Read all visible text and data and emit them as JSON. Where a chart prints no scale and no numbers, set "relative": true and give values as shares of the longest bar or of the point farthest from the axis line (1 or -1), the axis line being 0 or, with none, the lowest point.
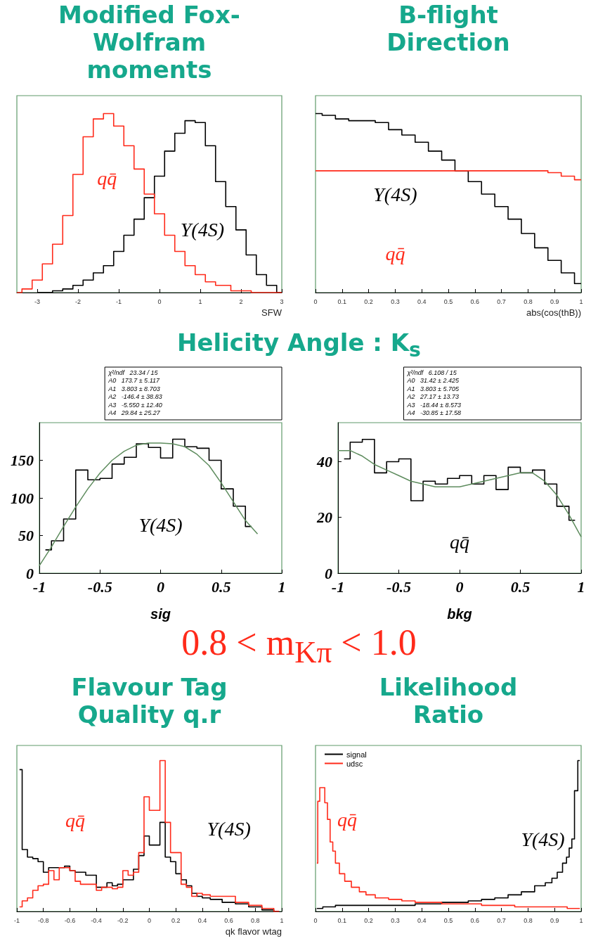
{
  "chart_data": [
    {
      "type": "step",
      "title": "Modified Fox-Wolfram moments",
      "xlabel": "SFW",
      "relative": true,
      "xlim": [
        -3.5,
        3
      ],
      "xticks": [
        -3,
        -2,
        -1,
        0,
        1,
        2,
        3
      ],
      "series": [
        {
          "name": "Υ(4S)",
          "color": "#000000",
          "x": [
            -3,
            -2.75,
            -2.5,
            -2.25,
            -2,
            -1.75,
            -1.5,
            -1.25,
            -1,
            -0.75,
            -0.5,
            -0.25,
            0,
            0.25,
            0.5,
            0.75,
            1,
            1.25,
            1.5,
            1.75,
            2,
            2.25,
            2.5,
            2.75,
            3
          ],
          "values": [
            0,
            0,
            0.01,
            0.02,
            0.04,
            0.07,
            0.11,
            0.15,
            0.23,
            0.32,
            0.41,
            0.53,
            0.65,
            0.79,
            0.89,
            0.96,
            0.95,
            0.82,
            0.62,
            0.48,
            0.35,
            0.21,
            0.1,
            0.04,
            0
          ]
        },
        {
          "name": "qq̄",
          "color": "#ff2a1a",
          "x": [
            -3.5,
            -3.25,
            -3,
            -2.75,
            -2.5,
            -2.25,
            -2,
            -1.75,
            -1.5,
            -1.25,
            -1,
            -0.75,
            -0.5,
            -0.25,
            0,
            0.25,
            0.5,
            0.75,
            1,
            1.25,
            1.5,
            2,
            2.5,
            3
          ],
          "values": [
            0,
            0.02,
            0.07,
            0.16,
            0.27,
            0.43,
            0.66,
            0.87,
            0.97,
            1,
            0.93,
            0.82,
            0.69,
            0.55,
            0.44,
            0.32,
            0.23,
            0.15,
            0.1,
            0.06,
            0.04,
            0.01,
            0,
            0
          ]
        }
      ]
    },
    {
      "type": "step",
      "title": "B-flight Direction",
      "xlabel": "abs(cos(thB))",
      "relative": true,
      "xlim": [
        0,
        1
      ],
      "xticks": [
        0,
        0.1,
        0.2,
        0.3,
        0.4,
        0.5,
        0.6,
        0.7,
        0.8,
        0.9,
        1
      ],
      "x": [
        0,
        0.05,
        0.1,
        0.15,
        0.2,
        0.25,
        0.3,
        0.35,
        0.4,
        0.45,
        0.5,
        0.55,
        0.6,
        0.65,
        0.7,
        0.75,
        0.8,
        0.85,
        0.9,
        0.95,
        1
      ],
      "series": [
        {
          "name": "Υ(4S)",
          "color": "#000000",
          "values": [
            1,
            0.99,
            0.97,
            0.96,
            0.96,
            0.95,
            0.91,
            0.88,
            0.84,
            0.79,
            0.74,
            0.68,
            0.62,
            0.55,
            0.48,
            0.41,
            0.33,
            0.25,
            0.18,
            0.11,
            0.05
          ]
        },
        {
          "name": "qq̄",
          "color": "#ff2a1a",
          "values": [
            0.68,
            0.68,
            0.68,
            0.68,
            0.68,
            0.68,
            0.68,
            0.68,
            0.68,
            0.68,
            0.68,
            0.68,
            0.68,
            0.68,
            0.68,
            0.68,
            0.68,
            0.68,
            0.67,
            0.65,
            0.63
          ]
        }
      ]
    },
    {
      "type": "step",
      "title": "Helicity Angle : K$_{s}$",
      "subtitle": "0.8 < m$_{Kπ}$ < 1.0",
      "xlabel": "sig",
      "xlim": [
        -1,
        1
      ],
      "xticks": [
        -1,
        -0.5,
        0,
        0.5,
        1
      ],
      "ylim": [
        0,
        200
      ],
      "yticks": [
        0,
        50,
        100,
        150
      ],
      "annotations": [
        "χ²/ndf   23.34 / 15",
        "A0   173.7 ± 5.117",
        "A1   3.803 ± 8.703",
        "A2   -146.4 ± 38.83",
        "A3   -5.550 ± 12.40",
        "A4   29.84 ± 25.27"
      ],
      "series": [
        {
          "name": "Υ(4S)",
          "color": "#000000",
          "x": [
            -0.95,
            -0.85,
            -0.75,
            -0.65,
            -0.55,
            -0.45,
            -0.35,
            -0.25,
            -0.15,
            -0.05,
            0.05,
            0.15,
            0.25,
            0.35,
            0.45,
            0.55,
            0.65,
            0.75
          ],
          "values": [
            31,
            43,
            72,
            137,
            124,
            126,
            145,
            154,
            172,
            167,
            153,
            178,
            168,
            166,
            150,
            112,
            89,
            62
          ]
        },
        {
          "type": "line",
          "color": "#5e8c5e",
          "x": [
            -1,
            -0.9,
            -0.8,
            -0.7,
            -0.6,
            -0.5,
            -0.4,
            -0.3,
            -0.2,
            -0.1,
            0,
            0.1,
            0.2,
            0.3,
            0.4,
            0.5,
            0.6,
            0.7,
            0.8
          ],
          "values": [
            10,
            35,
            62,
            88,
            112,
            133,
            150,
            162,
            170,
            173,
            173,
            172,
            168,
            158,
            143,
            120,
            95,
            70,
            52
          ]
        }
      ]
    },
    {
      "type": "step",
      "xlabel": "bkg",
      "xlim": [
        -1,
        1
      ],
      "xticks": [
        -1,
        -0.5,
        0,
        0.5,
        1
      ],
      "ylim": [
        0,
        54
      ],
      "yticks": [
        0,
        20,
        40
      ],
      "annotations": [
        "χ²/ndf   6.108 / 15",
        "A0   31.42 ± 2.425",
        "A1   3.803 ± 5.705",
        "A2   27.17 ± 13.73",
        "A3   -18.44 ± 8.573",
        "A4   -30.85 ± 17.58"
      ],
      "series": [
        {
          "name": "qq̄",
          "color": "#000000",
          "x": [
            -0.95,
            -0.85,
            -0.75,
            -0.65,
            -0.55,
            -0.45,
            -0.35,
            -0.25,
            -0.15,
            -0.05,
            0.05,
            0.15,
            0.25,
            0.35,
            0.45,
            0.55,
            0.65,
            0.75,
            0.85,
            0.95
          ],
          "values": [
            41,
            47,
            48,
            36,
            40,
            41,
            26,
            33,
            32,
            34,
            35,
            32,
            35,
            30,
            38,
            36,
            37,
            32,
            24,
            19
          ]
        },
        {
          "type": "line",
          "color": "#5e8c5e",
          "x": [
            -1,
            -0.9,
            -0.8,
            -0.7,
            -0.6,
            -0.5,
            -0.4,
            -0.3,
            -0.2,
            -0.1,
            0,
            0.1,
            0.2,
            0.3,
            0.4,
            0.5,
            0.6,
            0.7,
            0.8,
            0.9,
            1
          ],
          "values": [
            44,
            44,
            42,
            39,
            37,
            35,
            33,
            32,
            31,
            31,
            31,
            32,
            33,
            34,
            35,
            36,
            36,
            33,
            28,
            21,
            13
          ]
        }
      ]
    },
    {
      "type": "step",
      "title": "Flavour Tag Quality q.r",
      "xlabel": "qk flavor wtag",
      "relative": true,
      "xlim": [
        -1,
        1
      ],
      "xticks": [
        -1,
        -0.8,
        -0.6,
        -0.4,
        -0.2,
        0,
        0.2,
        0.4,
        0.6,
        0.8,
        1
      ],
      "x": [
        -0.98,
        -0.94,
        -0.9,
        -0.86,
        -0.82,
        -0.78,
        -0.74,
        -0.7,
        -0.66,
        -0.62,
        -0.58,
        -0.54,
        -0.5,
        -0.46,
        -0.42,
        -0.38,
        -0.34,
        -0.3,
        -0.26,
        -0.22,
        -0.18,
        -0.14,
        -0.1,
        -0.06,
        -0.02,
        0.02,
        0.06,
        0.1,
        0.14,
        0.18,
        0.22,
        0.26,
        0.3,
        0.34,
        0.38,
        0.42,
        0.5,
        0.6,
        0.7,
        0.8,
        0.9,
        0.98
      ],
      "series": [
        {
          "name": "Υ(4S)",
          "color": "#000000",
          "values": [
            0.94,
            0.41,
            0.36,
            0.35,
            0.33,
            0.26,
            0.29,
            0.29,
            0.29,
            0.3,
            0.27,
            0.26,
            0.26,
            0.24,
            0.24,
            0.16,
            0.16,
            0.19,
            0.17,
            0.18,
            0.21,
            0.21,
            0.28,
            0.37,
            0.5,
            0.44,
            0.44,
            0.59,
            0.36,
            0.33,
            0.25,
            0.21,
            0.17,
            0.12,
            0.1,
            0.09,
            0.08,
            0.06,
            0.05,
            0.03,
            0.01,
            0
          ]
        },
        {
          "name": "qq̄",
          "color": "#ff2a1a",
          "values": [
            0.03,
            0.07,
            0.09,
            0.14,
            0.17,
            0.18,
            0.27,
            0.21,
            0.29,
            0.29,
            0.27,
            0.2,
            0.18,
            0.18,
            0.18,
            0.14,
            0.16,
            0.16,
            0.15,
            0.16,
            0.27,
            0.24,
            0.26,
            0.39,
            0.76,
            0.67,
            0.67,
            1,
            0.59,
            0.39,
            0.39,
            0.18,
            0.16,
            0.1,
            0.12,
            0.11,
            0.1,
            0.1,
            0.06,
            0.04,
            0.02,
            0
          ]
        }
      ]
    },
    {
      "type": "step",
      "title": "Likelihood Ratio",
      "relative": true,
      "xlim": [
        0,
        1
      ],
      "xticks": [
        0,
        0.1,
        0.2,
        0.3,
        0.4,
        0.5,
        0.6,
        0.7,
        0.8,
        0.9,
        1
      ],
      "legend": "top left",
      "annotations": [
        {
          "text": "Υ(4S)",
          "x": 0.97,
          "y": 0.48
        },
        {
          "text": "qq̄",
          "x": 0.05,
          "y": 0.61
        }
      ],
      "series": [
        {
          "name": "signal",
          "color": "#000000",
          "x": [
            0.005,
            0.05,
            0.1,
            0.15,
            0.2,
            0.25,
            0.3,
            0.35,
            0.4,
            0.45,
            0.5,
            0.55,
            0.6,
            0.65,
            0.7,
            0.75,
            0.8,
            0.85,
            0.88,
            0.9,
            0.92,
            0.94,
            0.95,
            0.96,
            0.97,
            0.98,
            0.995
          ],
          "values": [
            0.02,
            0.03,
            0.04,
            0.04,
            0.04,
            0.04,
            0.04,
            0.04,
            0.05,
            0.05,
            0.06,
            0.06,
            0.07,
            0.08,
            0.09,
            0.11,
            0.13,
            0.17,
            0.19,
            0.22,
            0.26,
            0.32,
            0.36,
            0.42,
            0.48,
            0.8,
            1
          ]
        },
        {
          "name": "udsc",
          "color": "#ff2a1a",
          "x": [
            0.005,
            0.012,
            0.02,
            0.03,
            0.04,
            0.05,
            0.06,
            0.07,
            0.08,
            0.1,
            0.12,
            0.15,
            0.18,
            0.2,
            0.25,
            0.3,
            0.35,
            0.4,
            0.45,
            0.5,
            0.55,
            0.6,
            0.65,
            0.7,
            0.8,
            0.9,
            0.995
          ],
          "values": [
            0.32,
            0.73,
            0.82,
            0.82,
            0.72,
            0.61,
            0.46,
            0.4,
            0.32,
            0.25,
            0.2,
            0.16,
            0.13,
            0.11,
            0.09,
            0.08,
            0.07,
            0.06,
            0.06,
            0.05,
            0.05,
            0.05,
            0.04,
            0.04,
            0.03,
            0.03,
            0.02
          ]
        }
      ]
    }
  ]
}
